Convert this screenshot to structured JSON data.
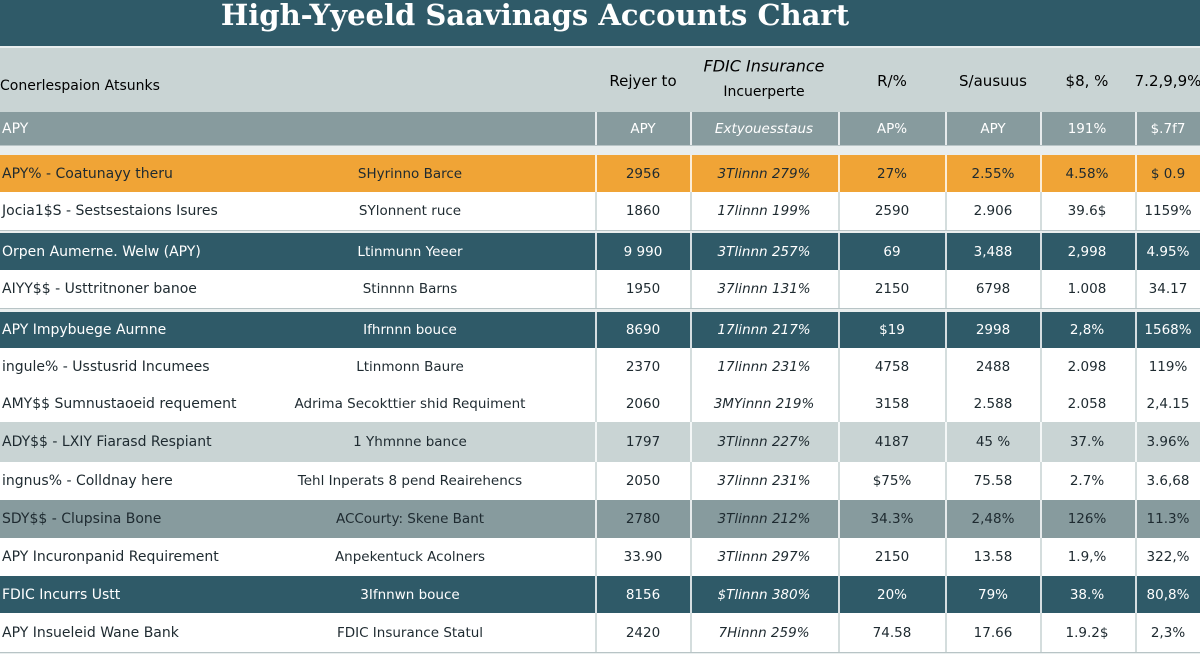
{
  "header": {
    "title": "High-Yyeeld Saavinags Accounts Chart"
  },
  "table": {
    "columns": [
      "Conerlespaion Atsunks",
      "Rejyer to",
      [
        "FDIC Insurance",
        "Incuerperte"
      ],
      "R/%",
      "S/ausuus",
      "$8, %",
      "7.2,9,9%"
    ],
    "rows": [
      {
        "fill": "#879b9e",
        "ink": "#ffffff",
        "cells": [
          "APY",
          "",
          "APY",
          "Extyouesstaus",
          "AP%",
          "APY",
          "191%",
          "$.7f7"
        ]
      },
      {
        "fill": "#f0a436",
        "ink": "#1e2a30",
        "cells": [
          "APY% - Coatunayy theru",
          "SHyrinno Barce",
          "2956",
          "3Tlinnn 279%",
          "27%",
          "2.55%",
          "4.58%",
          "$ 0.9"
        ]
      },
      {
        "fill": "#ffffff",
        "ink": "#1e2a30",
        "cells": [
          "Jocia1$S - Sestsestaions Isures",
          "SYlonnent ruce",
          "1860",
          "17linnn 199%",
          "2590",
          "2.906",
          "39.6$",
          "1159%"
        ]
      },
      {
        "fill": "#2f5a68",
        "ink": "#ffffff",
        "cells": [
          "Orpen Aumerne. Welw (APY)",
          "Ltinmunn Yeeer",
          "9 990",
          "3Tlinnn 257%",
          "69",
          "3,488",
          "2,998",
          "4.95%"
        ]
      },
      {
        "fill": "#ffffff",
        "ink": "#1e2a30",
        "cells": [
          "AIYY$$ - Usttritnoner banoe",
          "Stinnnn Barns",
          "1950",
          "37linnn 131%",
          "2150",
          "6798",
          "1.008",
          "34.17"
        ]
      },
      {
        "fill": "#2f5a68",
        "ink": "#ffffff",
        "cells": [
          "APY Impybuege Aurnne",
          "Ifhrnnn bouce",
          "8690",
          "17linnn 217%",
          "$19",
          "2998",
          "2,8%",
          "1568%"
        ]
      },
      {
        "fill": "#ffffff",
        "ink": "#1e2a30",
        "cells": [
          "ingule% - Usstusrid Incumees",
          "Ltinmonn Baure",
          "2370",
          "17linnn 231%",
          "4758",
          "2488",
          "2.098",
          "119%"
        ]
      },
      {
        "fill": "#ffffff",
        "ink": "#1e2a30",
        "cells": [
          "AMY$$ Sumnustaoeid requement",
          "Adrima Secokttier shid Requiment",
          "2060",
          "3MYinnn 219%",
          "3158",
          "2.588",
          "2.058",
          "2,4.15"
        ]
      },
      {
        "fill": "#c9d4d4",
        "ink": "#1e2a30",
        "cells": [
          "ADY$$ - LXIY Fiarasd Respiant",
          "1 Yhmnne bance",
          "1797",
          "3Tlinnn 227%",
          "4187",
          "45 %",
          "37.%",
          "3.96%"
        ]
      },
      {
        "fill": "#ffffff",
        "ink": "#1e2a30",
        "cells": [
          "ingnus% - Colldnay here",
          "Tehl Inperats 8 pend Reairehencs",
          "2050",
          "37linnn 231%",
          "$75%",
          "75.58",
          "2.7%",
          "3.6,68"
        ]
      },
      {
        "fill": "#879b9e",
        "ink": "#1e2a30",
        "cells": [
          "SDY$$ - Clupsina Bone",
          "ACCourty: Skene Bant",
          "2780",
          "3Tlinnn 212%",
          "34.3%",
          "2,48%",
          "126%",
          "11.3%"
        ]
      },
      {
        "fill": "#ffffff",
        "ink": "#1e2a30",
        "cells": [
          "APY Incuronpanid Requirement",
          "Anpekentuck Acolners",
          "33.90",
          "3Tlinnn 297%",
          "2150",
          "13.58",
          "1.9,%",
          "322,%"
        ]
      },
      {
        "fill": "#2f5a68",
        "ink": "#ffffff",
        "cells": [
          "FDIC Incurrs Ustt",
          "3Ifnnwn bouce",
          "8156",
          "$Tlinnn 380%",
          "20%",
          "79%",
          "38.%",
          "80,8%"
        ]
      },
      {
        "fill": "#ffffff",
        "ink": "#1e2a30",
        "cells": [
          "APY Insueleid Wane Bank",
          "FDIC Insurance Statul",
          "2420",
          "7Hinnn 259%",
          "74.58",
          "17.66",
          "1.9.2$",
          "2,3%"
        ]
      }
    ]
  }
}
